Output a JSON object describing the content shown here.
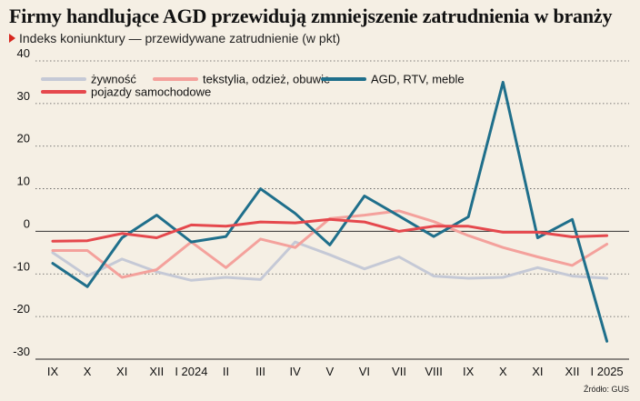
{
  "title": "Firmy handlujące AGD przewidują zmniejszenie zatrudnienia w branży",
  "subtitle": "Indeks koniunktury — przewidywane zatrudnienie (w pkt)",
  "source": "Źródło: GUS",
  "chart_data": {
    "type": "line",
    "title": "Firmy handlujące AGD przewidują zmniejszenie zatrudnienia w branży",
    "subtitle": "Indeks koniunktury — przewidywane zatrudnienie (w pkt)",
    "categories": [
      "IX",
      "X",
      "XI",
      "XII",
      "I 2024",
      "II",
      "III",
      "IV",
      "V",
      "VI",
      "VII",
      "VIII",
      "IX",
      "X",
      "XI",
      "XII",
      "I 2025"
    ],
    "ylim": [
      -30,
      40
    ],
    "yticks": [
      -30,
      -20,
      -10,
      0,
      10,
      20,
      30,
      40
    ],
    "grid": "horizontal dotted",
    "legend_position": "top-left",
    "series": [
      {
        "name": "żywność",
        "color": "#c5c9d6",
        "values": [
          -5,
          -10.5,
          -6.5,
          -9.5,
          -11.5,
          -10.8,
          -11.3,
          -2.5,
          -5.5,
          -8.8,
          -6,
          -10.5,
          -11,
          -10.8,
          -8.5,
          -10.5,
          -11
        ]
      },
      {
        "name": "tekstylia, odzież, obuwie",
        "color": "#f4a19c",
        "values": [
          -4.5,
          -4.5,
          -10.8,
          -9,
          -2.5,
          -8.5,
          -1.8,
          -3.8,
          3,
          3.8,
          4.8,
          2.3,
          -1,
          -3.8,
          -6,
          -8,
          -3
        ]
      },
      {
        "name": "AGD, RTV, meble",
        "color": "#1f6f8b",
        "values": [
          -7.5,
          -13,
          -1.5,
          3.8,
          -2.5,
          -1.2,
          10,
          4.2,
          -3.2,
          8.3,
          3.6,
          -1.2,
          3.4,
          35,
          -1.5,
          2.8,
          -25.8
        ]
      },
      {
        "name": "pojazdy samochodowe",
        "color": "#e5484d",
        "values": [
          -2.3,
          -2.2,
          -0.5,
          -1.5,
          1.5,
          1.2,
          2.2,
          2,
          2.8,
          2.2,
          0,
          1.2,
          1.2,
          -0.2,
          -0.2,
          -1.3,
          -1
        ]
      }
    ]
  }
}
